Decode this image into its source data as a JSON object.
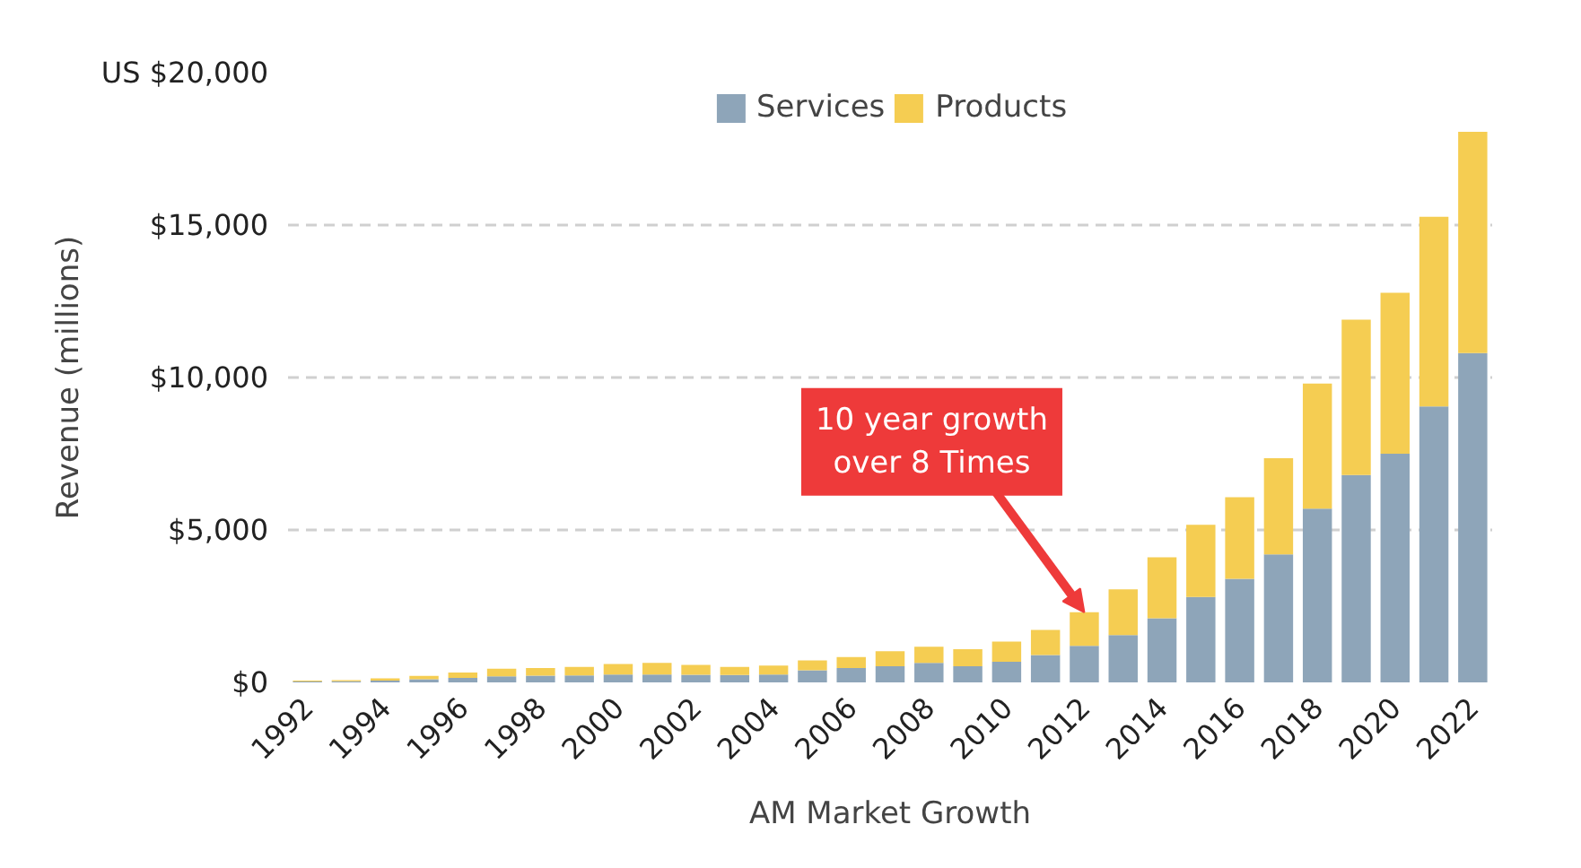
{
  "chart_data": {
    "type": "bar",
    "stacked": true,
    "ylabel": "Revenue (millions)",
    "x": [
      1992,
      1993,
      1994,
      1995,
      1996,
      1997,
      1998,
      1999,
      2000,
      2001,
      2002,
      2003,
      2004,
      2005,
      2006,
      2007,
      2008,
      2009,
      2010,
      2011,
      2012,
      2013,
      2014,
      2015,
      2016,
      2017,
      2018,
      2019,
      2020,
      2021,
      2022
    ],
    "series": [
      {
        "name": "Services",
        "color": "#8ea5b9",
        "values": [
          30,
          40,
          60,
          100,
          150,
          200,
          220,
          230,
          260,
          260,
          250,
          240,
          260,
          400,
          470,
          530,
          640,
          530,
          680,
          900,
          1200,
          1550,
          2100,
          2800,
          3400,
          4200,
          5700,
          6800,
          7500,
          9050,
          10800
        ]
      },
      {
        "name": "Products",
        "color": "#f5cd52",
        "values": [
          30,
          30,
          70,
          110,
          170,
          250,
          250,
          280,
          340,
          380,
          320,
          270,
          290,
          320,
          360,
          490,
          530,
          560,
          660,
          820,
          1100,
          1500,
          2000,
          2370,
          2670,
          3150,
          4100,
          5100,
          5280,
          6220,
          7260
        ]
      }
    ],
    "xlim": [
      1991.5,
      2022.5
    ],
    "xticks": [
      1992,
      1994,
      1996,
      1998,
      2000,
      2002,
      2004,
      2006,
      2008,
      2010,
      2012,
      2014,
      2016,
      2018,
      2020,
      2022
    ],
    "ylim": [
      0,
      20000
    ],
    "yticks": [
      {
        "value": 0,
        "label": "$0"
      },
      {
        "value": 5000,
        "label": "$5,000"
      },
      {
        "value": 10000,
        "label": "$10,000"
      },
      {
        "value": 15000,
        "label": "$15,000"
      },
      {
        "value": 20000,
        "label": "US $20,000"
      }
    ],
    "grid": "y",
    "legend": "top",
    "xlabel": "AM Market Growth",
    "annotations": [
      {
        "text": "10 year growth\nover 8 Times",
        "x": 2012,
        "y": 2300
      }
    ]
  }
}
